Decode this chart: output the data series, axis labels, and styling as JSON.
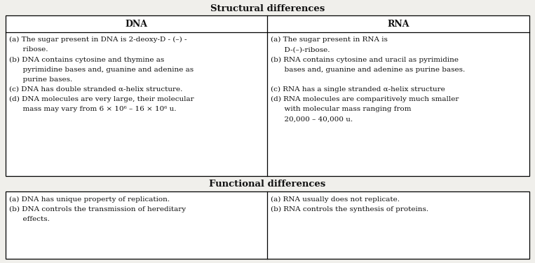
{
  "title1": "Structural differences",
  "title2": "Functional differences",
  "header_dna": "DNA",
  "header_rna": "RNA",
  "bg_color": "#f0efeb",
  "text_color": "#111111",
  "struct_dna_lines": [
    {
      "text": "(a) The sugar present in DNA is 2-deoxy-D - (–) -",
      "indent": false
    },
    {
      "text": "      ribose.",
      "indent": false
    },
    {
      "text": "(b) DNA contains cytosine and thymine as",
      "indent": false
    },
    {
      "text": "      pyrimidine bases and, guanine and adenine as",
      "indent": false
    },
    {
      "text": "      purine bases.",
      "indent": false
    },
    {
      "text": "(c) DNA has double stranded α-helix structure.",
      "indent": false
    },
    {
      "text": "(d) DNA molecules are very large, their molecular",
      "indent": false
    },
    {
      "text": "      mass may vary from 6 × 10⁶ – 16 × 10⁶ u.",
      "indent": false
    }
  ],
  "struct_rna_lines": [
    {
      "text": "(a) The sugar present in RNA is",
      "indent": false
    },
    {
      "text": "      D-(–)-ribose.",
      "indent": false
    },
    {
      "text": "(b) RNA contains cytosine and uracil as pyrimidine",
      "indent": false
    },
    {
      "text": "      bases and, guanine and adenine as purine bases.",
      "indent": false
    },
    {
      "text": "",
      "indent": false
    },
    {
      "text": "(c) RNA has a single stranded α-helix structure",
      "indent": false
    },
    {
      "text": "(d) RNA molecules are comparitively much smaller",
      "indent": false
    },
    {
      "text": "      with molecular mass ranging from",
      "indent": false
    },
    {
      "text": "      20,000 – 40,000 u.",
      "indent": false
    }
  ],
  "func_dna_lines": [
    {
      "text": "(a) DNA has unique property of replication.",
      "indent": false
    },
    {
      "text": "(b) DNA controls the transmission of hereditary",
      "indent": false
    },
    {
      "text": "      effects.",
      "indent": false
    }
  ],
  "func_rna_lines": [
    {
      "text": "(a) RNA usually does not replicate.",
      "indent": false
    },
    {
      "text": "(b) RNA controls the synthesis of proteins.",
      "indent": false
    }
  ],
  "figw": 7.63,
  "figh": 3.75,
  "dpi": 100
}
